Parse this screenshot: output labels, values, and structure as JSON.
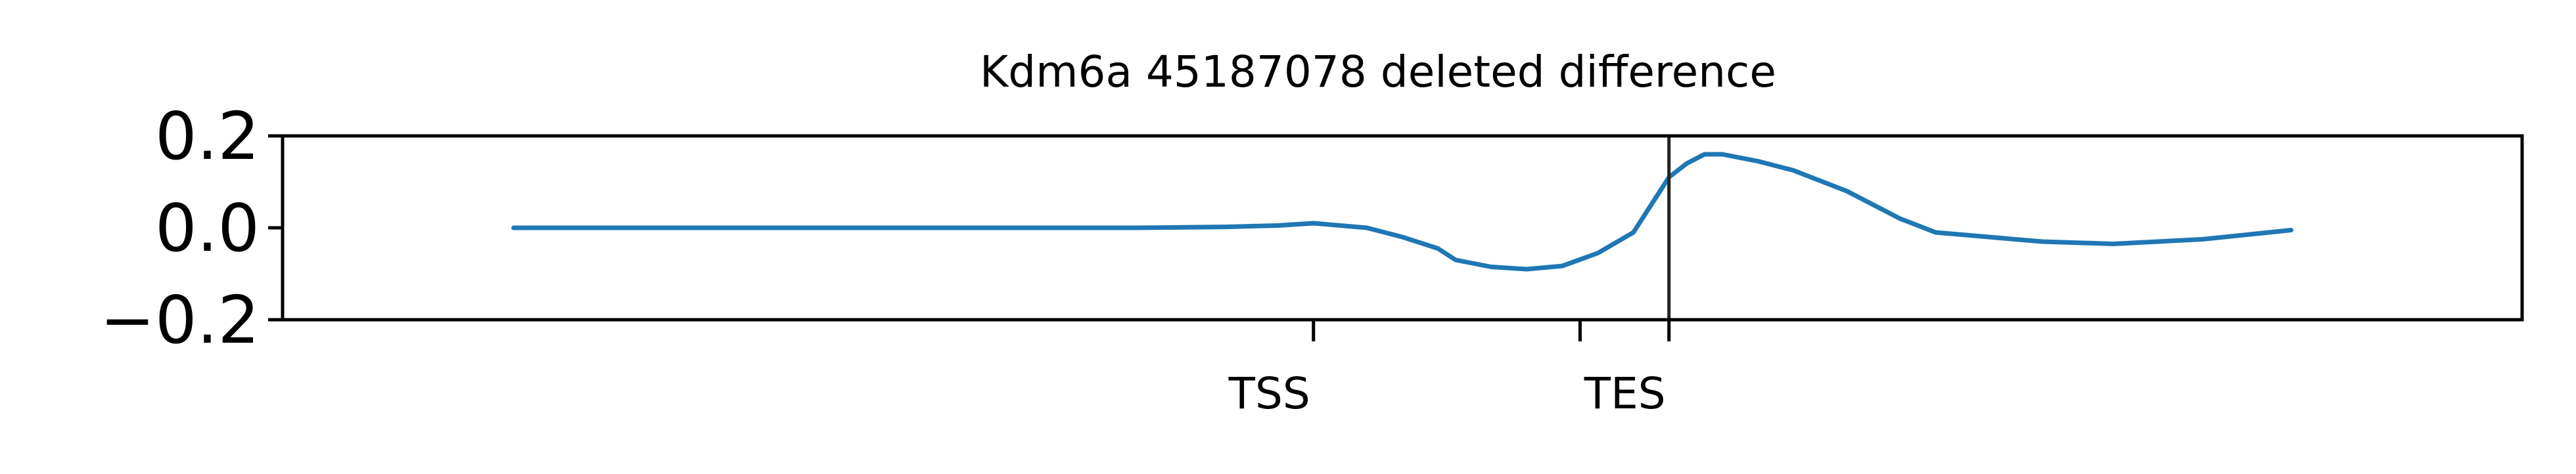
{
  "chart_data": {
    "type": "line",
    "title": "Kdm6a 45187078 deleted difference",
    "xlabel": "",
    "ylabel": "",
    "xlim": [
      -0.13,
      1.13
    ],
    "ylim": [
      -0.2,
      0.2
    ],
    "y_ticks": [
      {
        "value": 0.2,
        "label": "0.2"
      },
      {
        "value": 0.0,
        "label": "0.0"
      },
      {
        "value": -0.2,
        "label": "−0.2"
      }
    ],
    "x_ticks": [
      {
        "value": 0.45,
        "label": "TSS"
      },
      {
        "value": 0.6,
        "label": ""
      },
      {
        "value": 0.65,
        "label": "TES"
      }
    ],
    "vline_x": 0.65,
    "grid": false,
    "series": [
      {
        "color": "#1f77b4",
        "x": [
          0.0,
          0.1,
          0.2,
          0.3,
          0.35,
          0.4,
          0.43,
          0.45,
          0.48,
          0.5,
          0.52,
          0.53,
          0.55,
          0.57,
          0.59,
          0.61,
          0.63,
          0.65,
          0.66,
          0.67,
          0.68,
          0.7,
          0.72,
          0.75,
          0.78,
          0.8,
          0.83,
          0.86,
          0.9,
          0.95,
          1.0
        ],
        "y": [
          0.0,
          0.0,
          0.0,
          0.0,
          0.0,
          0.002,
          0.005,
          0.01,
          0.0,
          -0.02,
          -0.045,
          -0.07,
          -0.085,
          -0.09,
          -0.083,
          -0.055,
          -0.01,
          0.11,
          0.14,
          0.16,
          0.16,
          0.145,
          0.125,
          0.08,
          0.02,
          -0.01,
          -0.02,
          -0.03,
          -0.035,
          -0.025,
          -0.005
        ]
      }
    ]
  }
}
